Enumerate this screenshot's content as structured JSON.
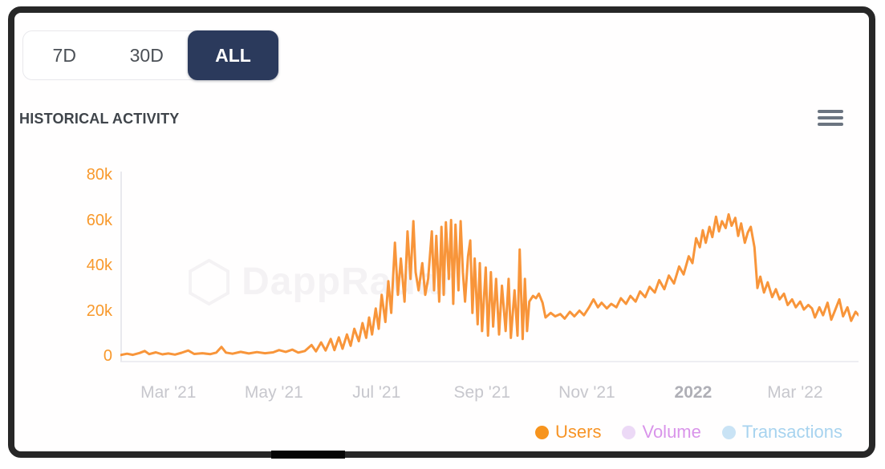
{
  "range": {
    "buttons": [
      {
        "label": "7D",
        "active": false
      },
      {
        "label": "30D",
        "active": false
      },
      {
        "label": "ALL",
        "active": true
      }
    ],
    "active_bg": "#2b3a5c"
  },
  "header": {
    "title": "HISTORICAL ACTIVITY"
  },
  "watermark": {
    "text": "DappRadar"
  },
  "legend": {
    "items": [
      {
        "label": "Users",
        "dot_color": "#f7941d",
        "text_color": "#f79426",
        "active": true
      },
      {
        "label": "Volume",
        "dot_color": "#ecd9f6",
        "text_color": "#d994ea",
        "active": false
      },
      {
        "label": "Transactions",
        "dot_color": "#c9e3f5",
        "text_color": "#a7d3ef",
        "active": false
      }
    ]
  },
  "chart_data": {
    "type": "line",
    "title": "HISTORICAL ACTIVITY",
    "series_name": "Users",
    "line_color": "#f8953a",
    "axis_color": "#e9e9ee",
    "grid": false,
    "legend_position": "bottom-right",
    "values_unit": "thousands of users",
    "ylim": [
      0,
      80
    ],
    "y_ticks": [
      {
        "label": "80k",
        "value": 80
      },
      {
        "label": "60k",
        "value": 60
      },
      {
        "label": "40k",
        "value": 40
      },
      {
        "label": "20k",
        "value": 20
      },
      {
        "label": "0",
        "value": 0
      }
    ],
    "x_ticks": [
      {
        "label": "Mar '21",
        "pct": 6.5,
        "bold": false
      },
      {
        "label": "May '21",
        "pct": 20.8,
        "bold": false
      },
      {
        "label": "Jul '21",
        "pct": 34.7,
        "bold": false
      },
      {
        "label": "Sep '21",
        "pct": 49.0,
        "bold": false
      },
      {
        "label": "Nov '21",
        "pct": 63.2,
        "bold": false
      },
      {
        "label": "2022",
        "pct": 77.6,
        "bold": true
      },
      {
        "label": "Mar '22",
        "pct": 91.4,
        "bold": false
      }
    ],
    "points": [
      [
        0.0,
        0.4
      ],
      [
        0.9,
        1.0
      ],
      [
        1.7,
        0.5
      ],
      [
        2.6,
        1.3
      ],
      [
        3.3,
        2.2
      ],
      [
        3.9,
        0.8
      ],
      [
        4.8,
        1.6
      ],
      [
        5.7,
        0.7
      ],
      [
        6.5,
        1.1
      ],
      [
        7.4,
        0.6
      ],
      [
        8.3,
        1.4
      ],
      [
        9.2,
        2.4
      ],
      [
        10.0,
        0.9
      ],
      [
        11.1,
        1.2
      ],
      [
        12.2,
        0.8
      ],
      [
        13.0,
        1.5
      ],
      [
        13.7,
        4.0
      ],
      [
        14.3,
        1.5
      ],
      [
        15.2,
        1.0
      ],
      [
        16.3,
        1.8
      ],
      [
        17.4,
        1.1
      ],
      [
        18.5,
        1.7
      ],
      [
        19.6,
        1.2
      ],
      [
        20.7,
        1.6
      ],
      [
        21.5,
        2.6
      ],
      [
        22.4,
        1.8
      ],
      [
        23.3,
        2.8
      ],
      [
        24.1,
        1.5
      ],
      [
        25.0,
        2.2
      ],
      [
        25.9,
        4.8
      ],
      [
        26.5,
        2.0
      ],
      [
        27.2,
        6.0
      ],
      [
        27.8,
        2.4
      ],
      [
        28.5,
        7.5
      ],
      [
        29.0,
        2.6
      ],
      [
        29.6,
        8.2
      ],
      [
        30.1,
        3.2
      ],
      [
        30.7,
        9.5
      ],
      [
        31.2,
        4.5
      ],
      [
        31.7,
        12.0
      ],
      [
        32.3,
        6.5
      ],
      [
        32.8,
        14.5
      ],
      [
        33.3,
        8.0
      ],
      [
        33.7,
        17.0
      ],
      [
        34.1,
        9.5
      ],
      [
        34.6,
        21.0
      ],
      [
        35.0,
        12.0
      ],
      [
        35.4,
        27.0
      ],
      [
        35.9,
        15.0
      ],
      [
        36.3,
        33.0
      ],
      [
        36.7,
        19.0
      ],
      [
        37.2,
        50.0
      ],
      [
        37.6,
        27.0
      ],
      [
        38.0,
        43.0
      ],
      [
        38.5,
        24.0
      ],
      [
        38.9,
        55.0
      ],
      [
        39.3,
        34.0
      ],
      [
        39.7,
        59.5
      ],
      [
        40.0,
        37.0
      ],
      [
        40.4,
        29.0
      ],
      [
        40.9,
        41.0
      ],
      [
        41.3,
        27.0
      ],
      [
        41.7,
        34.0
      ],
      [
        42.2,
        55.0
      ],
      [
        42.5,
        29.0
      ],
      [
        42.8,
        53.0
      ],
      [
        43.2,
        24.0
      ],
      [
        43.5,
        57.0
      ],
      [
        43.8,
        27.0
      ],
      [
        44.1,
        59.0
      ],
      [
        44.5,
        34.0
      ],
      [
        44.8,
        60.0
      ],
      [
        45.1,
        23.0
      ],
      [
        45.4,
        58.0
      ],
      [
        45.8,
        29.0
      ],
      [
        46.1,
        59.5
      ],
      [
        46.4,
        37.0
      ],
      [
        46.7,
        24.0
      ],
      [
        47.1,
        44.0
      ],
      [
        47.4,
        51.0
      ],
      [
        47.7,
        19.0
      ],
      [
        48.0,
        43.0
      ],
      [
        48.4,
        14.0
      ],
      [
        48.7,
        41.0
      ],
      [
        49.0,
        11.0
      ],
      [
        49.5,
        39.0
      ],
      [
        49.8,
        9.0
      ],
      [
        50.2,
        37.0
      ],
      [
        50.5,
        13.0
      ],
      [
        50.9,
        34.0
      ],
      [
        51.3,
        9.5
      ],
      [
        51.7,
        31.0
      ],
      [
        52.2,
        11.0
      ],
      [
        52.6,
        34.0
      ],
      [
        52.9,
        8.0
      ],
      [
        53.4,
        29.0
      ],
      [
        53.8,
        9.0
      ],
      [
        54.1,
        47.0
      ],
      [
        54.5,
        7.5
      ],
      [
        54.8,
        34.0
      ],
      [
        55.1,
        11.0
      ],
      [
        55.4,
        24.0
      ],
      [
        55.9,
        26.5
      ],
      [
        56.3,
        25.5
      ],
      [
        56.7,
        27.5
      ],
      [
        57.2,
        23.5
      ],
      [
        57.6,
        17.0
      ],
      [
        58.3,
        19.0
      ],
      [
        58.9,
        17.5
      ],
      [
        59.6,
        18.5
      ],
      [
        60.2,
        16.5
      ],
      [
        60.9,
        19.5
      ],
      [
        61.5,
        17.5
      ],
      [
        62.2,
        20.0
      ],
      [
        62.8,
        18.0
      ],
      [
        63.5,
        21.5
      ],
      [
        64.1,
        25.0
      ],
      [
        64.7,
        21.5
      ],
      [
        65.2,
        23.5
      ],
      [
        65.9,
        21.0
      ],
      [
        66.5,
        23.0
      ],
      [
        67.2,
        21.5
      ],
      [
        67.8,
        25.5
      ],
      [
        68.5,
        23.0
      ],
      [
        69.1,
        26.5
      ],
      [
        69.8,
        24.0
      ],
      [
        70.4,
        28.5
      ],
      [
        71.1,
        26.0
      ],
      [
        71.7,
        30.5
      ],
      [
        72.4,
        28.0
      ],
      [
        73.0,
        33.5
      ],
      [
        73.7,
        29.5
      ],
      [
        74.3,
        35.5
      ],
      [
        75.0,
        32.0
      ],
      [
        75.7,
        39.5
      ],
      [
        76.3,
        36.0
      ],
      [
        77.0,
        44.0
      ],
      [
        77.5,
        41.0
      ],
      [
        78.0,
        52.0
      ],
      [
        78.5,
        48.0
      ],
      [
        78.9,
        55.5
      ],
      [
        79.3,
        50.0
      ],
      [
        79.8,
        57.0
      ],
      [
        80.2,
        52.5
      ],
      [
        80.7,
        61.5
      ],
      [
        81.1,
        55.0
      ],
      [
        81.5,
        59.5
      ],
      [
        82.0,
        56.5
      ],
      [
        82.4,
        62.5
      ],
      [
        82.8,
        57.5
      ],
      [
        83.3,
        61.0
      ],
      [
        83.7,
        53.0
      ],
      [
        84.1,
        58.5
      ],
      [
        84.6,
        50.0
      ],
      [
        85.0,
        54.5
      ],
      [
        85.4,
        57.0
      ],
      [
        85.9,
        48.0
      ],
      [
        86.3,
        30.0
      ],
      [
        86.7,
        35.0
      ],
      [
        87.2,
        28.0
      ],
      [
        87.7,
        32.5
      ],
      [
        88.3,
        26.0
      ],
      [
        88.8,
        29.5
      ],
      [
        89.3,
        25.0
      ],
      [
        89.9,
        27.5
      ],
      [
        90.4,
        22.5
      ],
      [
        91.0,
        25.0
      ],
      [
        91.5,
        21.5
      ],
      [
        92.1,
        24.0
      ],
      [
        92.6,
        20.5
      ],
      [
        93.2,
        22.5
      ],
      [
        93.7,
        21.0
      ],
      [
        94.1,
        17.0
      ],
      [
        94.7,
        21.5
      ],
      [
        95.2,
        18.0
      ],
      [
        95.8,
        23.5
      ],
      [
        96.3,
        16.0
      ],
      [
        96.8,
        20.0
      ],
      [
        97.4,
        25.0
      ],
      [
        97.9,
        17.5
      ],
      [
        98.5,
        21.5
      ],
      [
        99.0,
        15.5
      ],
      [
        99.6,
        19.5
      ],
      [
        100.0,
        18.0
      ]
    ]
  }
}
